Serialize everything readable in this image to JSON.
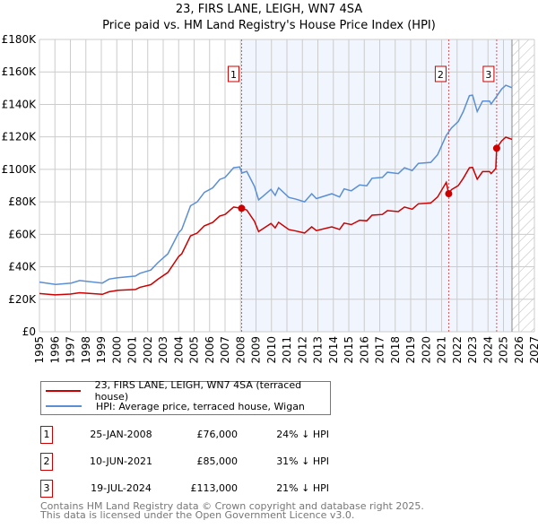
{
  "chart_data": {
    "type": "line",
    "title": "23, FIRS LANE, LEIGH, WN7 4SA",
    "subtitle": "Price paid vs. HM Land Registry's House Price Index (HPI)",
    "xlim": [
      1995,
      2027
    ],
    "ylim": [
      0,
      180000
    ],
    "x_ticks": [
      "1995",
      "1996",
      "1997",
      "1998",
      "1999",
      "2000",
      "2001",
      "2002",
      "2003",
      "2004",
      "2005",
      "2006",
      "2007",
      "2008",
      "2009",
      "2010",
      "2011",
      "2012",
      "2013",
      "2014",
      "2015",
      "2016",
      "2017",
      "2018",
      "2019",
      "2020",
      "2021",
      "2022",
      "2023",
      "2024",
      "2025",
      "2026",
      "2027"
    ],
    "y_ticks": [
      {
        "v": 0,
        "label": "£0"
      },
      {
        "v": 20000,
        "label": "£20K"
      },
      {
        "v": 40000,
        "label": "£40K"
      },
      {
        "v": 60000,
        "label": "£60K"
      },
      {
        "v": 80000,
        "label": "£80K"
      },
      {
        "v": 100000,
        "label": "£100K"
      },
      {
        "v": 120000,
        "label": "£120K"
      },
      {
        "v": 140000,
        "label": "£140K"
      },
      {
        "v": 160000,
        "label": "£160K"
      },
      {
        "v": 180000,
        "label": "£180K"
      }
    ],
    "grid": true,
    "shaded_region": [
      2008.07,
      2025.55
    ],
    "hatched_region": [
      2025.55,
      2027
    ],
    "series": [
      {
        "name": "23, FIRS LANE, LEIGH, WN7 4SA (terraced house)",
        "color": "#cc0000",
        "x": [
          1995,
          1996,
          1997,
          1997.6,
          1999.07,
          1999.5,
          2000.07,
          2001.2,
          2001.5,
          2002.2,
          2002.65,
          2003.3,
          2004,
          2004.2,
          2004.77,
          2005.2,
          2005.66,
          2006.2,
          2006.66,
          2007,
          2007.55,
          2008.07,
          2008.4,
          2008.9,
          2009.17,
          2009.46,
          2009.97,
          2010.24,
          2010.46,
          2011.13,
          2011.6,
          2012.14,
          2012.6,
          2012.9,
          2013.9,
          2014.4,
          2014.7,
          2015.16,
          2015.7,
          2016.16,
          2016.5,
          2017.17,
          2017.5,
          2018.2,
          2018.6,
          2019.1,
          2019.5,
          2020.3,
          2020.74,
          2021.3,
          2021.46,
          2021.64,
          2022.08,
          2022.4,
          2022.8,
          2023,
          2023.3,
          2023.65,
          2024.1,
          2024.2,
          2024.5,
          2024.56,
          2024.88,
          2025.15,
          2025.55
        ],
        "y": [
          23500,
          22700,
          23200,
          24000,
          23000,
          24600,
          25500,
          26000,
          27400,
          29000,
          32300,
          36500,
          46400,
          48000,
          59000,
          60800,
          65200,
          67300,
          71300,
          72200,
          76800,
          76000,
          75000,
          68000,
          61700,
          63500,
          66700,
          64000,
          67400,
          62900,
          62000,
          60800,
          64600,
          62300,
          64600,
          63000,
          66900,
          66000,
          68700,
          68300,
          71800,
          72200,
          74600,
          74000,
          76800,
          75500,
          78800,
          79300,
          83000,
          92000,
          85000,
          87500,
          90000,
          94500,
          101000,
          101200,
          94000,
          98600,
          98600,
          97400,
          100500,
          113000,
          117500,
          119800,
          118500
        ]
      },
      {
        "name": "HPI: Average price, terraced house, Wigan",
        "color": "#5b8fd4",
        "x": [
          1995,
          1996.05,
          1997.06,
          1997.6,
          1999.07,
          1999.5,
          2000.07,
          2001.2,
          2001.5,
          2002.2,
          2002.65,
          2003.3,
          2004,
          2004.2,
          2004.77,
          2005.2,
          2005.66,
          2006.2,
          2006.66,
          2007,
          2007.55,
          2007.94,
          2008.1,
          2008.4,
          2008.9,
          2009.17,
          2009.46,
          2009.97,
          2010.24,
          2010.46,
          2011.13,
          2011.6,
          2012.14,
          2012.6,
          2012.9,
          2013.9,
          2014.4,
          2014.7,
          2015.16,
          2015.7,
          2016.16,
          2016.5,
          2017.17,
          2017.5,
          2018.2,
          2018.6,
          2019.1,
          2019.5,
          2020.3,
          2020.74,
          2021.3,
          2021.64,
          2022.08,
          2022.4,
          2022.8,
          2023,
          2023.3,
          2023.65,
          2024.1,
          2024.2,
          2024.54,
          2024.88,
          2025.15,
          2025.55
        ],
        "y": [
          30600,
          29100,
          30000,
          31500,
          30000,
          32400,
          33300,
          34300,
          36000,
          38000,
          42500,
          48000,
          61000,
          63000,
          77600,
          80000,
          85800,
          88600,
          93800,
          95000,
          101000,
          101500,
          97800,
          98700,
          89500,
          81200,
          83500,
          87700,
          84000,
          88600,
          82700,
          81600,
          80000,
          85000,
          82000,
          85000,
          83000,
          88000,
          86800,
          90400,
          89900,
          94500,
          95000,
          98200,
          97400,
          101000,
          99300,
          103700,
          104300,
          109000,
          120900,
          125500,
          129500,
          135600,
          145400,
          145700,
          135600,
          142000,
          142000,
          140200,
          144800,
          149400,
          151800,
          150300
        ]
      }
    ],
    "sales": [
      {
        "label": "1",
        "x": 2008.07,
        "y": 76000
      },
      {
        "label": "2",
        "x": 2021.46,
        "y": 85000
      },
      {
        "label": "3",
        "x": 2024.56,
        "y": 113000
      }
    ]
  },
  "legend": [
    {
      "label": "23, FIRS LANE, LEIGH, WN7 4SA (terraced house)",
      "color": "#cc0000"
    },
    {
      "label": "HPI: Average price, terraced house, Wigan",
      "color": "#5b8fd4"
    }
  ],
  "sales_table": [
    {
      "num": "1",
      "date": "25-JAN-2008",
      "price": "£76,000",
      "hpi": "24% ↓ HPI"
    },
    {
      "num": "2",
      "date": "10-JUN-2021",
      "price": "£85,000",
      "hpi": "31% ↓ HPI"
    },
    {
      "num": "3",
      "date": "19-JUL-2024",
      "price": "£113,000",
      "hpi": "21% ↓ HPI"
    }
  ],
  "footer": {
    "line1": "Contains HM Land Registry data © Crown copyright and database right 2025.",
    "line2": "This data is licensed under the Open Government Licence v3.0."
  }
}
